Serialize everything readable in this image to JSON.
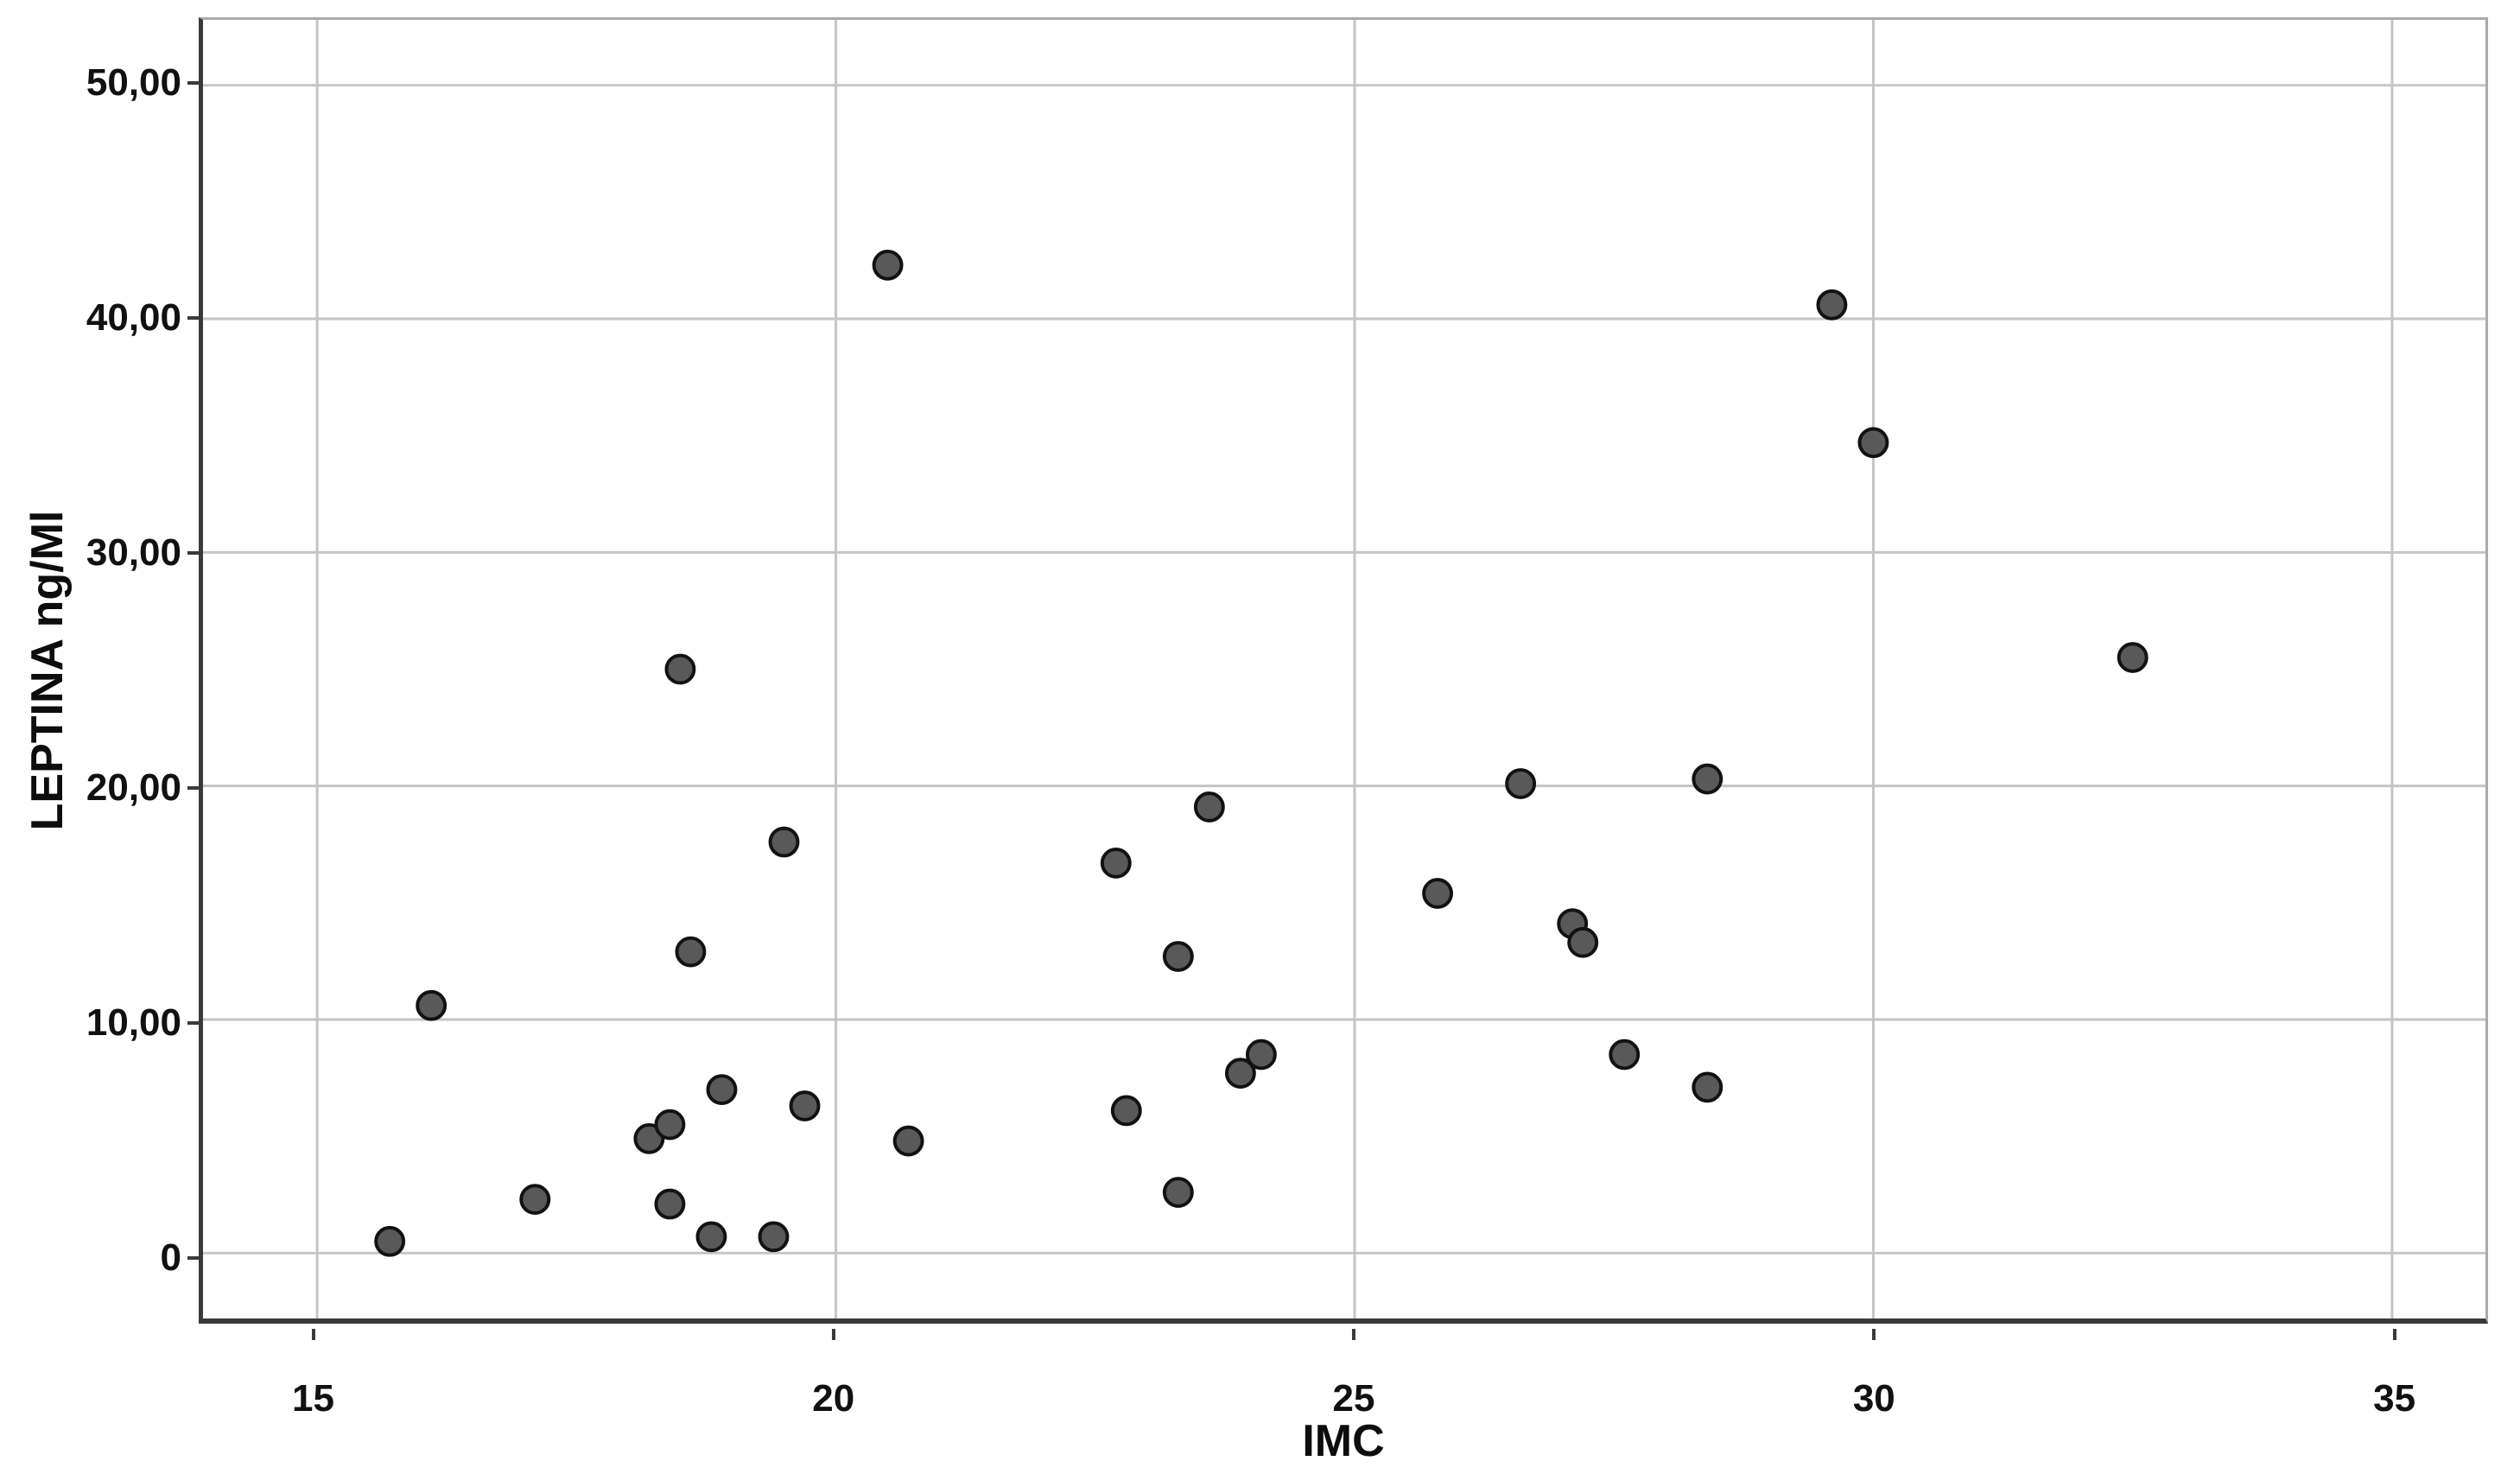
{
  "figure": {
    "background": "#ffffff",
    "grid_color": "#c5c5c5",
    "frame_dark_color": "#3a3a3a",
    "frame_light_color": "#ababab",
    "point_fill_color": "#595959",
    "point_stroke_color": "#121212",
    "label_color": "#111111"
  },
  "chart_data": {
    "type": "scatter",
    "title": "",
    "xlabel": "IMC",
    "ylabel": "LEPTINA ng/Ml",
    "xlim": [
      13.9,
      35.9
    ],
    "ylim": [
      -2.8,
      52.8
    ],
    "grid": true,
    "legend_position": "none",
    "x_ticks": [
      15,
      20,
      25,
      30,
      35
    ],
    "x_tick_labels": [
      "15",
      "20",
      "25",
      "30",
      "35"
    ],
    "y_ticks": [
      0,
      10,
      20,
      30,
      40,
      50
    ],
    "y_tick_labels": [
      "0",
      "10,00",
      "20,00",
      "30,00",
      "40,00",
      "50,00"
    ],
    "points": [
      [
        15.7,
        0.5
      ],
      [
        16.1,
        10.6
      ],
      [
        17.1,
        2.3
      ],
      [
        18.2,
        4.9
      ],
      [
        18.4,
        5.5
      ],
      [
        18.4,
        2.1
      ],
      [
        18.5,
        25.0
      ],
      [
        18.6,
        12.9
      ],
      [
        18.8,
        0.7
      ],
      [
        18.9,
        7.0
      ],
      [
        19.4,
        0.7
      ],
      [
        19.5,
        17.6
      ],
      [
        19.7,
        6.3
      ],
      [
        20.5,
        42.3
      ],
      [
        20.7,
        4.8
      ],
      [
        22.7,
        16.7
      ],
      [
        22.8,
        6.1
      ],
      [
        23.3,
        12.7
      ],
      [
        23.3,
        2.6
      ],
      [
        23.6,
        19.1
      ],
      [
        23.9,
        7.7
      ],
      [
        24.1,
        8.5
      ],
      [
        25.8,
        15.4
      ],
      [
        26.6,
        20.1
      ],
      [
        27.1,
        14.1
      ],
      [
        27.2,
        13.3
      ],
      [
        27.6,
        8.5
      ],
      [
        28.4,
        20.3
      ],
      [
        28.4,
        7.1
      ],
      [
        29.6,
        40.6
      ],
      [
        30.0,
        34.7
      ],
      [
        32.5,
        25.5
      ]
    ],
    "point_radius_px": 16,
    "point_stroke_width_px": 4
  }
}
